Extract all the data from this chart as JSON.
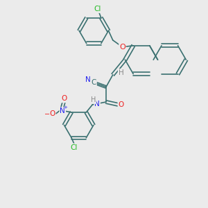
{
  "background_color": "#ebebeb",
  "bond_color": "#3a7070",
  "atom_colors": {
    "C": "#3a7070",
    "H": "#888888",
    "N": "#2020ee",
    "O": "#ee2020",
    "Cl": "#22bb22"
  },
  "figsize": [
    3.0,
    3.0
  ],
  "dpi": 100
}
